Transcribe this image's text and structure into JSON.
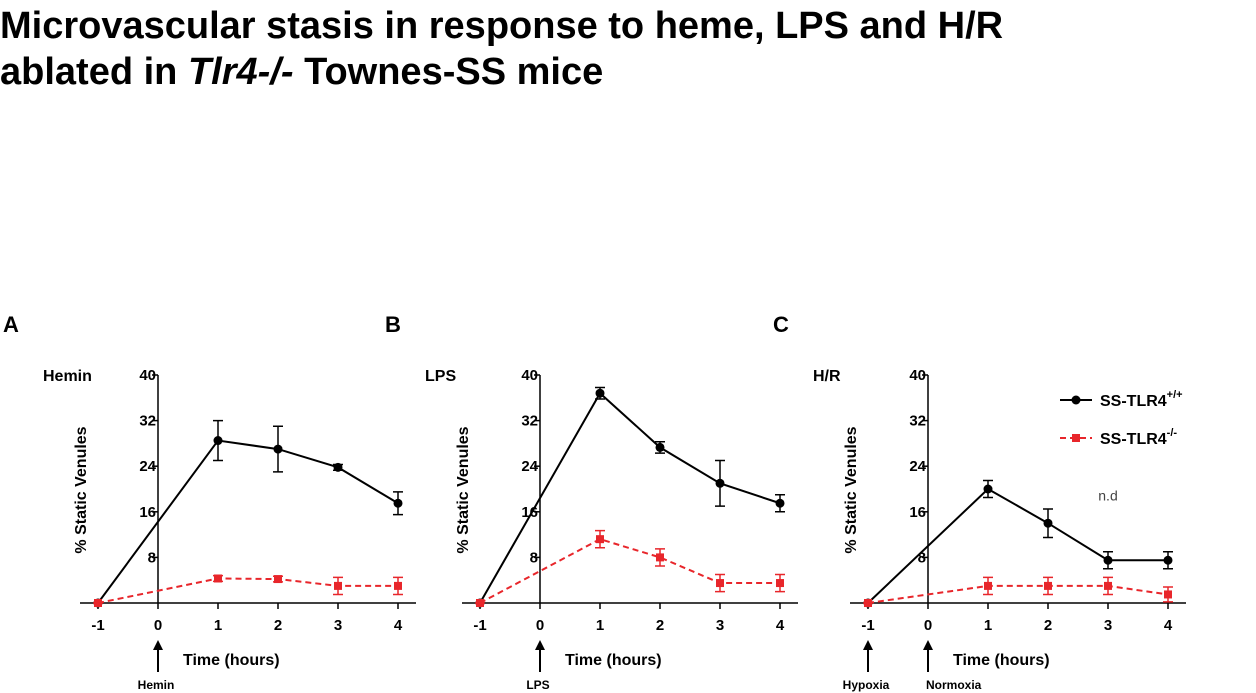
{
  "title": [
    "Microvascular stasis in response to heme, LPS and H/R",
    "ablated in",
    "Tlr4-/-",
    "Townes-SS mice"
  ],
  "chart_data": [
    {
      "type": "line",
      "panel": "A",
      "label": "Hemin",
      "ylabel": "% Static Venules",
      "xlabel": "Time (hours)",
      "x": [
        -1,
        1,
        2,
        3,
        4
      ],
      "xlim": [
        -1.3,
        4.3
      ],
      "xticks": [
        -1,
        0,
        1,
        2,
        3,
        4
      ],
      "ylim": [
        0,
        40
      ],
      "yticks": [
        8,
        16,
        24,
        32,
        40
      ],
      "arrows": [
        {
          "x": 0,
          "label": "Hemin"
        }
      ],
      "series": [
        {
          "name": "SS-TLR4",
          "name_sup": "+/+",
          "color": "#000000",
          "dash": false,
          "values": [
            0,
            28.5,
            27,
            23.8,
            17.5
          ],
          "errors": [
            0,
            3.5,
            4,
            0.5,
            2
          ]
        },
        {
          "name": "SS-TLR4",
          "name_sup": "-/-",
          "color": "#e8262b",
          "dash": true,
          "values": [
            0,
            4.3,
            4.2,
            3,
            3
          ],
          "errors": [
            0,
            0.5,
            0.5,
            1.5,
            1.5
          ]
        }
      ]
    },
    {
      "type": "line",
      "panel": "B",
      "label": "LPS",
      "ylabel": "% Static Venules",
      "xlabel": "Time (hours)",
      "x": [
        -1,
        1,
        2,
        3,
        4
      ],
      "xlim": [
        -1.3,
        4.3
      ],
      "xticks": [
        -1,
        0,
        1,
        2,
        3,
        4
      ],
      "ylim": [
        0,
        40
      ],
      "yticks": [
        8,
        16,
        24,
        32,
        40
      ],
      "arrows": [
        {
          "x": 0,
          "label": "LPS"
        }
      ],
      "series": [
        {
          "name": "SS-TLR4",
          "name_sup": "+/+",
          "color": "#000000",
          "dash": false,
          "values": [
            0,
            36.8,
            27.3,
            21,
            17.5
          ],
          "errors": [
            0,
            1,
            1,
            4,
            1.5
          ]
        },
        {
          "name": "SS-TLR4",
          "name_sup": "-/-",
          "color": "#e8262b",
          "dash": true,
          "values": [
            0,
            11.2,
            8,
            3.5,
            3.5
          ],
          "errors": [
            0,
            1.5,
            1.5,
            1.5,
            1.5
          ]
        }
      ]
    },
    {
      "type": "line",
      "panel": "C",
      "label": "H/R",
      "ylabel": "% Static Venules",
      "xlabel": "Time (hours)",
      "x": [
        -1,
        1,
        2,
        3,
        4
      ],
      "xlim": [
        -1.3,
        4.3
      ],
      "xticks": [
        -1,
        0,
        1,
        2,
        3,
        4
      ],
      "ylim": [
        0,
        40
      ],
      "yticks": [
        8,
        16,
        24,
        32,
        40
      ],
      "arrows": [
        {
          "x": -1,
          "label": "Hypoxia"
        },
        {
          "x": 0,
          "label": "Normoxia"
        }
      ],
      "annotation": {
        "x": 3,
        "y": 18,
        "text": "n.d"
      },
      "legend": "top-right",
      "series": [
        {
          "name": "SS-TLR4",
          "name_sup": "+/+",
          "color": "#000000",
          "dash": false,
          "values": [
            0,
            20,
            14,
            7.5,
            7.5
          ],
          "errors": [
            0,
            1.5,
            2.5,
            1.5,
            1.5
          ]
        },
        {
          "name": "SS-TLR4",
          "name_sup": "-/-",
          "color": "#e8262b",
          "dash": true,
          "values": [
            0,
            3,
            3,
            3,
            1.5
          ],
          "errors": [
            0,
            1.5,
            1.5,
            1.5,
            1.3
          ]
        }
      ]
    }
  ]
}
